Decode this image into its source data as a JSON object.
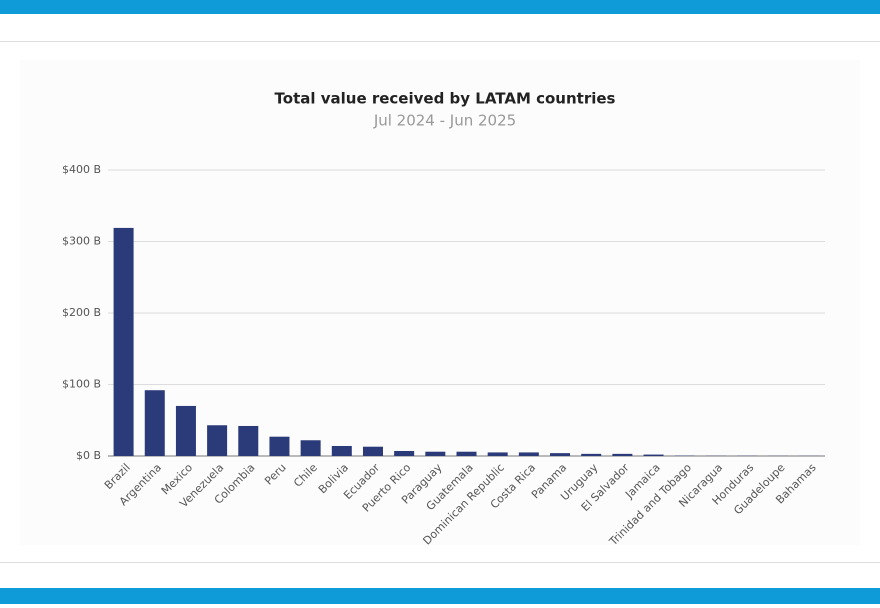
{
  "chart_data": {
    "type": "bar",
    "title": "Total value received by LATAM countries",
    "subtitle": "Jul 2024 - Jun 2025",
    "categories": [
      "Brazil",
      "Argentina",
      "Mexico",
      "Venezuela",
      "Colombia",
      "Peru",
      "Chile",
      "Bolivia",
      "Ecuador",
      "Puerto Rico",
      "Paraguay",
      "Guatemala",
      "Dominican Republic",
      "Costa Rica",
      "Panama",
      "Uruguay",
      "El Salvador",
      "Jamaica",
      "Trinidad and Tobago",
      "Nicaragua",
      "Honduras",
      "Guadeloupe",
      "Bahamas"
    ],
    "values": [
      319,
      92,
      70,
      43,
      42,
      27,
      22,
      14,
      13,
      7,
      6,
      6,
      5,
      5,
      4,
      3,
      3,
      2,
      0.5,
      0.3,
      0.3,
      0.2,
      0.2
    ],
    "color": "#2b3a78",
    "ylim": [
      0,
      400
    ],
    "yticks": [
      {
        "value": 0,
        "label": "$0 B"
      },
      {
        "value": 100,
        "label": "$100 B"
      },
      {
        "value": 200,
        "label": "$200 B"
      },
      {
        "value": 300,
        "label": "$300 B"
      },
      {
        "value": 400,
        "label": "$400 B"
      }
    ],
    "grid": true
  }
}
